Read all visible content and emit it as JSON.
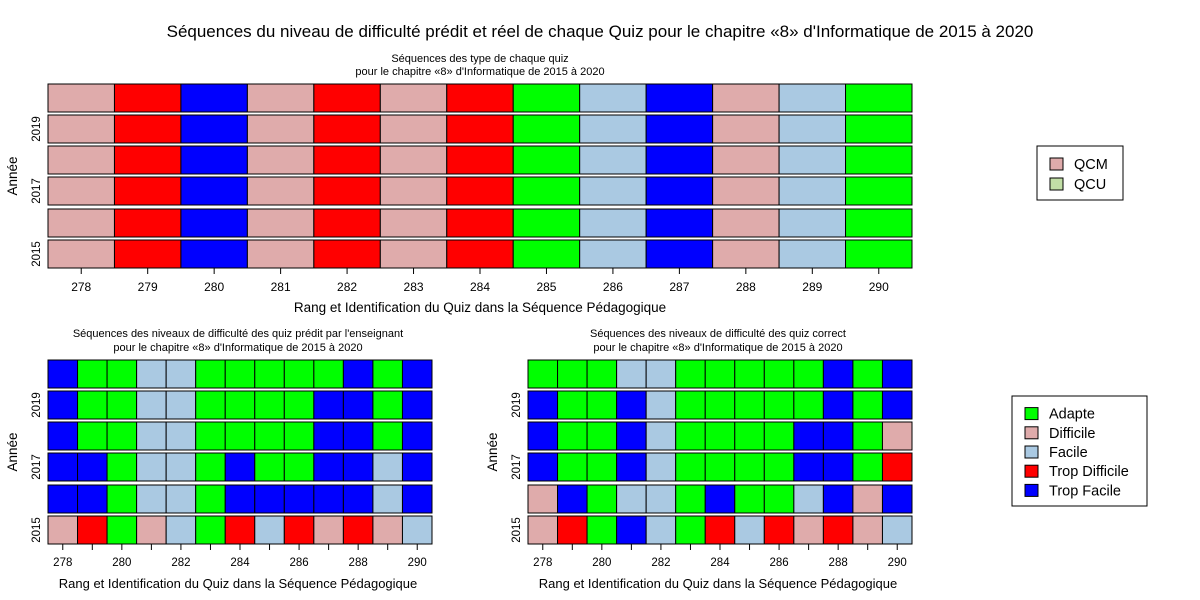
{
  "title": "Séquences du niveau de difficulté prédit et réel de chaque Quiz pour le chapitre «8» d'Informatique de 2015 à 2020",
  "colors": {
    "Adapte": "#00ff00",
    "Difficile": "#dfabab",
    "Facile": "#aac9e2",
    "Trop Difficile": "#ff0000",
    "Trop Facile": "#0000ff",
    "QCM": "#dfabab",
    "QCU": "#c2dfa6"
  },
  "legends": {
    "type": [
      "QCM",
      "QCU"
    ],
    "level": [
      "Adapte",
      "Difficile",
      "Facile",
      "Trop Difficile",
      "Trop Facile"
    ]
  },
  "chart_data": [
    {
      "id": "top",
      "type": "heatmap",
      "title_line1": "Séquences des type de chaque quiz",
      "title_line2": "pour le chapitre «8» d'Informatique de 2015 à 2020",
      "xlabel": "Rang et Identification du Quiz dans la Séquence Pédagogique",
      "ylabel": "Année",
      "x_ticks": [
        "278",
        "279",
        "280",
        "281",
        "282",
        "283",
        "284",
        "285",
        "286",
        "287",
        "288",
        "289",
        "290"
      ],
      "y_ticks": [
        {
          "row": 1,
          "label": "2019"
        },
        {
          "row": 3,
          "label": "2017"
        },
        {
          "row": 5,
          "label": "2015"
        }
      ],
      "rows": [
        [
          "Difficile",
          "Trop Difficile",
          "Trop Facile",
          "Difficile",
          "Trop Difficile",
          "Difficile",
          "Trop Difficile",
          "Adapte",
          "Facile",
          "Trop Facile",
          "Difficile",
          "Facile",
          "Adapte"
        ],
        [
          "Difficile",
          "Trop Difficile",
          "Trop Facile",
          "Difficile",
          "Trop Difficile",
          "Difficile",
          "Trop Difficile",
          "Adapte",
          "Facile",
          "Trop Facile",
          "Difficile",
          "Facile",
          "Adapte"
        ],
        [
          "Difficile",
          "Trop Difficile",
          "Trop Facile",
          "Difficile",
          "Trop Difficile",
          "Difficile",
          "Trop Difficile",
          "Adapte",
          "Facile",
          "Trop Facile",
          "Difficile",
          "Facile",
          "Adapte"
        ],
        [
          "Difficile",
          "Trop Difficile",
          "Trop Facile",
          "Difficile",
          "Trop Difficile",
          "Difficile",
          "Trop Difficile",
          "Adapte",
          "Facile",
          "Trop Facile",
          "Difficile",
          "Facile",
          "Adapte"
        ],
        [
          "Difficile",
          "Trop Difficile",
          "Trop Facile",
          "Difficile",
          "Trop Difficile",
          "Difficile",
          "Trop Difficile",
          "Adapte",
          "Facile",
          "Trop Facile",
          "Difficile",
          "Facile",
          "Adapte"
        ],
        [
          "Difficile",
          "Trop Difficile",
          "Trop Facile",
          "Difficile",
          "Trop Difficile",
          "Difficile",
          "Trop Difficile",
          "Adapte",
          "Facile",
          "Trop Facile",
          "Difficile",
          "Facile",
          "Adapte"
        ]
      ]
    },
    {
      "id": "bottom-left",
      "type": "heatmap",
      "title_line1": "Séquences des niveaux de difficulté des quiz prédit par l'enseignant",
      "title_line2": "pour le chapitre «8» d'Informatique de 2015 à 2020",
      "xlabel": "Rang et Identification du Quiz dans la Séquence Pédagogique",
      "ylabel": "Année",
      "x_ticks": [
        "278",
        "280",
        "282",
        "284",
        "286",
        "288",
        "290"
      ],
      "y_ticks": [
        {
          "row": 1,
          "label": "2019"
        },
        {
          "row": 3,
          "label": "2017"
        },
        {
          "row": 5,
          "label": "2015"
        }
      ],
      "rows": [
        [
          "Trop Facile",
          "Adapte",
          "Adapte",
          "Facile",
          "Facile",
          "Adapte",
          "Adapte",
          "Adapte",
          "Adapte",
          "Adapte",
          "Trop Facile",
          "Adapte",
          "Trop Facile"
        ],
        [
          "Trop Facile",
          "Adapte",
          "Adapte",
          "Facile",
          "Facile",
          "Adapte",
          "Adapte",
          "Adapte",
          "Adapte",
          "Trop Facile",
          "Trop Facile",
          "Adapte",
          "Trop Facile"
        ],
        [
          "Trop Facile",
          "Adapte",
          "Adapte",
          "Facile",
          "Facile",
          "Adapte",
          "Adapte",
          "Adapte",
          "Adapte",
          "Trop Facile",
          "Trop Facile",
          "Adapte",
          "Trop Facile"
        ],
        [
          "Trop Facile",
          "Trop Facile",
          "Adapte",
          "Facile",
          "Facile",
          "Adapte",
          "Trop Facile",
          "Adapte",
          "Adapte",
          "Trop Facile",
          "Trop Facile",
          "Facile",
          "Trop Facile"
        ],
        [
          "Trop Facile",
          "Trop Facile",
          "Adapte",
          "Facile",
          "Facile",
          "Adapte",
          "Trop Facile",
          "Trop Facile",
          "Trop Facile",
          "Trop Facile",
          "Trop Facile",
          "Facile",
          "Trop Facile"
        ],
        [
          "Difficile",
          "Trop Difficile",
          "Adapte",
          "Difficile",
          "Facile",
          "Adapte",
          "Trop Difficile",
          "Facile",
          "Trop Difficile",
          "Difficile",
          "Trop Difficile",
          "Difficile",
          "Facile"
        ]
      ]
    },
    {
      "id": "bottom-right",
      "type": "heatmap",
      "title_line1": "Séquences des niveaux de difficulté des quiz correct",
      "title_line2": "pour le chapitre «8» d'Informatique de 2015 à 2020",
      "xlabel": "Rang et Identification du Quiz dans la Séquence Pédagogique",
      "ylabel": "Année",
      "x_ticks": [
        "278",
        "280",
        "282",
        "284",
        "286",
        "288",
        "290"
      ],
      "y_ticks": [
        {
          "row": 1,
          "label": "2019"
        },
        {
          "row": 3,
          "label": "2017"
        },
        {
          "row": 5,
          "label": "2015"
        }
      ],
      "rows": [
        [
          "Adapte",
          "Adapte",
          "Adapte",
          "Facile",
          "Facile",
          "Adapte",
          "Adapte",
          "Adapte",
          "Adapte",
          "Adapte",
          "Trop Facile",
          "Adapte",
          "Trop Facile"
        ],
        [
          "Trop Facile",
          "Adapte",
          "Adapte",
          "Trop Facile",
          "Facile",
          "Adapte",
          "Adapte",
          "Adapte",
          "Adapte",
          "Adapte",
          "Trop Facile",
          "Adapte",
          "Trop Facile"
        ],
        [
          "Trop Facile",
          "Adapte",
          "Adapte",
          "Trop Facile",
          "Facile",
          "Adapte",
          "Adapte",
          "Adapte",
          "Adapte",
          "Trop Facile",
          "Trop Facile",
          "Adapte",
          "Difficile"
        ],
        [
          "Trop Facile",
          "Adapte",
          "Adapte",
          "Trop Facile",
          "Facile",
          "Adapte",
          "Adapte",
          "Adapte",
          "Adapte",
          "Trop Facile",
          "Trop Facile",
          "Adapte",
          "Trop Difficile"
        ],
        [
          "Difficile",
          "Trop Facile",
          "Adapte",
          "Facile",
          "Facile",
          "Adapte",
          "Trop Facile",
          "Adapte",
          "Adapte",
          "Facile",
          "Trop Facile",
          "Difficile",
          "Trop Facile"
        ],
        [
          "Difficile",
          "Trop Difficile",
          "Adapte",
          "Trop Facile",
          "Facile",
          "Adapte",
          "Trop Difficile",
          "Facile",
          "Trop Difficile",
          "Difficile",
          "Trop Difficile",
          "Difficile",
          "Facile"
        ]
      ]
    }
  ]
}
